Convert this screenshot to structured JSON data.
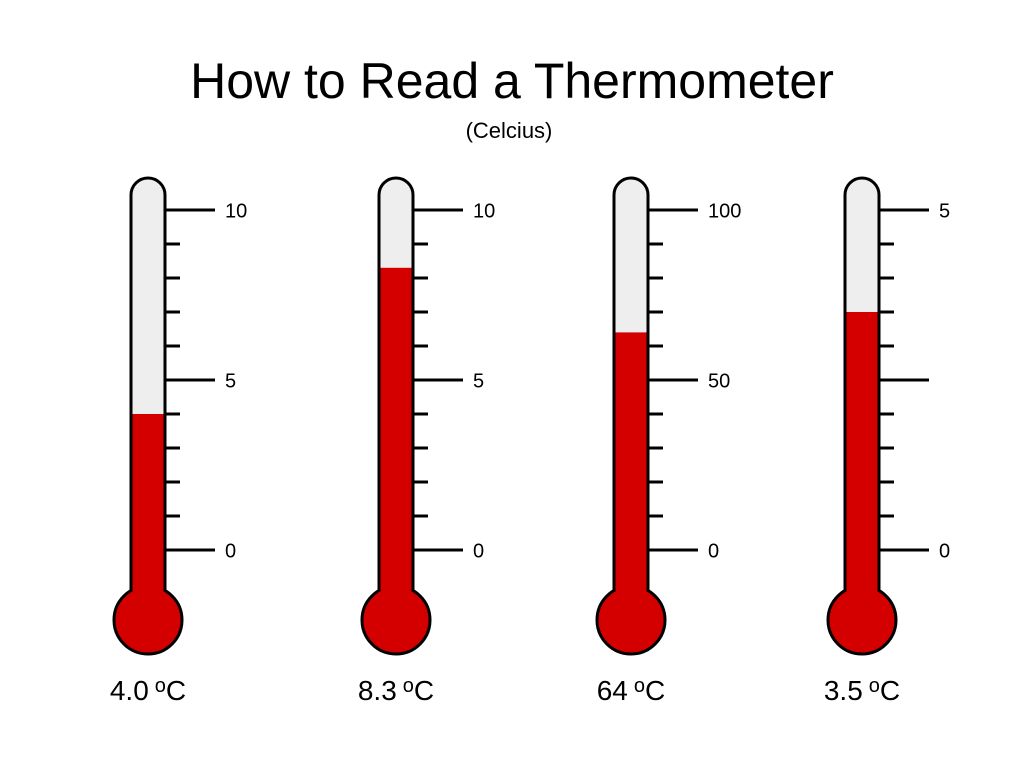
{
  "title": "How to Read a Thermometer",
  "subtitle": "(Celcius)",
  "thermometers": [
    {
      "ylim": [
        0,
        10
      ],
      "yticks": [
        0,
        5,
        10
      ],
      "major_step": 5,
      "minor_step": 1,
      "value": 4.0,
      "value_label": "4.0",
      "unit_superscript": "o",
      "unit": "C"
    },
    {
      "ylim": [
        0,
        10
      ],
      "yticks": [
        0,
        5,
        10
      ],
      "major_step": 5,
      "minor_step": 1,
      "value": 8.3,
      "value_label": "8.3",
      "unit_superscript": "o",
      "unit": "C"
    },
    {
      "ylim": [
        0,
        100
      ],
      "yticks": [
        0,
        50,
        100
      ],
      "major_step": 50,
      "minor_step": 10,
      "value": 64,
      "value_label": "64",
      "unit_superscript": "o",
      "unit": "C"
    },
    {
      "ylim": [
        0,
        5
      ],
      "yticks": [
        0,
        5
      ],
      "major_step": 2.5,
      "minor_step": 0.5,
      "value": 3.5,
      "value_label": "3.5",
      "unit_superscript": "o",
      "unit": "C"
    }
  ]
}
